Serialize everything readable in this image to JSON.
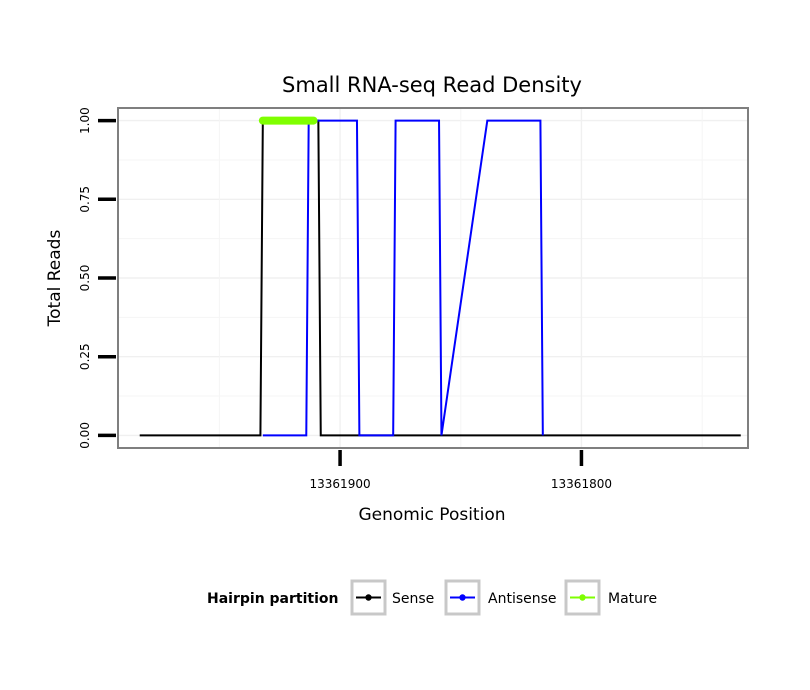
{
  "chart_data": {
    "type": "line",
    "title": "Small RNA-seq Read Density",
    "xlabel": "Genomic Position",
    "ylabel": "Total Reads",
    "x_reversed": true,
    "xlim": [
      13361992,
      13361731
    ],
    "ylim": [
      -0.04,
      1.04
    ],
    "x_ticks": [
      13361900,
      13361800
    ],
    "x_tick_labels": [
      "13361900",
      "13361800"
    ],
    "y_ticks": [
      0,
      0.25,
      0.5,
      0.75,
      1
    ],
    "y_tick_labels": [
      "0.00",
      "0.25",
      "0.50",
      "0.75",
      "1.00"
    ],
    "grid": true,
    "legend": {
      "title": "Hairpin partition",
      "position": "bottom",
      "entries": [
        {
          "name": "Sense",
          "color": "#000000"
        },
        {
          "name": "Antisense",
          "color": "#0000ff"
        },
        {
          "name": "Mature",
          "color": "#7fff00"
        }
      ]
    },
    "series": [
      {
        "name": "Sense",
        "color": "#000000",
        "x": [
          13361983,
          13361933,
          13361932,
          13361912,
          13361911,
          13361910,
          13361910,
          13361910,
          13361909,
          13361909,
          13361908,
          13361734
        ],
        "y": [
          0,
          0,
          1,
          1,
          1,
          1,
          1,
          1,
          1,
          1,
          0,
          0
        ]
      },
      {
        "name": "Antisense",
        "color": "#0000ff",
        "x": [
          13361932,
          13361914,
          13361913,
          13361893,
          13361892,
          13361878,
          13361877,
          13361859,
          13361858,
          13361839,
          13361837,
          13361817,
          13361816
        ],
        "y": [
          0,
          0,
          1,
          1,
          0,
          0,
          1,
          1,
          0,
          1,
          1,
          1,
          0
        ]
      },
      {
        "name": "Mature",
        "color": "#7fff00",
        "x": [
          13361932,
          13361911
        ],
        "y": [
          1,
          1
        ]
      }
    ]
  }
}
